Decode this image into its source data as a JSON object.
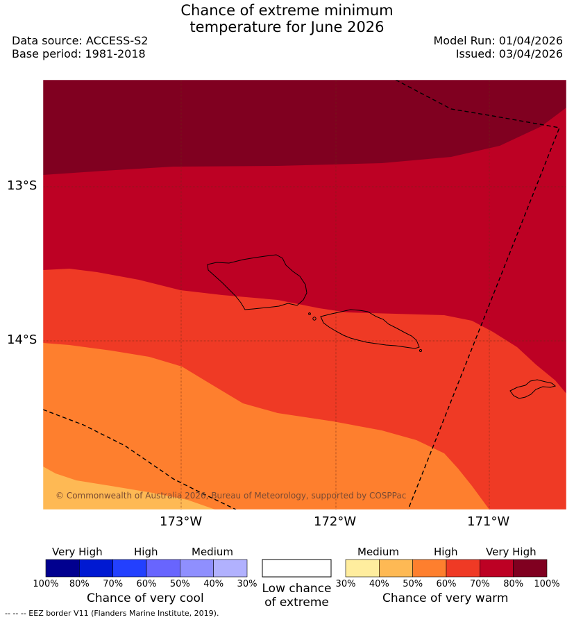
{
  "title": {
    "line1": "Chance of extreme minimum",
    "line2": "temperature for June 2026"
  },
  "meta": {
    "data_source": "Data source: ACCESS-S2",
    "base_period": "Base period: 1981-2018",
    "model_run": "Model Run: 01/04/2026",
    "issued": "Issued: 03/04/2026"
  },
  "map": {
    "lat_labels": [
      "13°S",
      "14°S"
    ],
    "lon_labels": [
      "173°W",
      "172°W",
      "171°W"
    ],
    "copyright": "© Commonwealth of Australia 2026, Bureau of Meteorology, supported by COSPPac",
    "colors": {
      "very_high_100": "#800020",
      "high_80": "#bd0124",
      "high_70": "#ef3a25",
      "med_60": "#fe7f2e",
      "med_50": "#feb954",
      "med_40": "#ffed9e"
    }
  },
  "legend": {
    "cool": {
      "headers": [
        "Very High",
        "High",
        "Medium"
      ],
      "ticks": [
        "100%",
        "80%",
        "70%",
        "60%",
        "50%",
        "40%",
        "30%"
      ],
      "title": "Chance of very cool",
      "colors": [
        "#01008f",
        "#0019d2",
        "#2340fe",
        "#6865fe",
        "#8f8ffe",
        "#b1b1fe"
      ]
    },
    "neutral": {
      "line1": "Low chance",
      "line2": "of extreme",
      "color": "#ffffff"
    },
    "warm": {
      "headers": [
        "Medium",
        "High",
        "Very High"
      ],
      "ticks": [
        "30%",
        "40%",
        "50%",
        "60%",
        "70%",
        "80%",
        "100%"
      ],
      "title": "Chance of very warm",
      "colors": [
        "#ffed9e",
        "#feb954",
        "#fe7f2e",
        "#ef3a25",
        "#bd0124",
        "#800020"
      ]
    }
  },
  "eez_note": "-- -- -- EEZ border V11 (Flanders Marine Institute, 2019)."
}
